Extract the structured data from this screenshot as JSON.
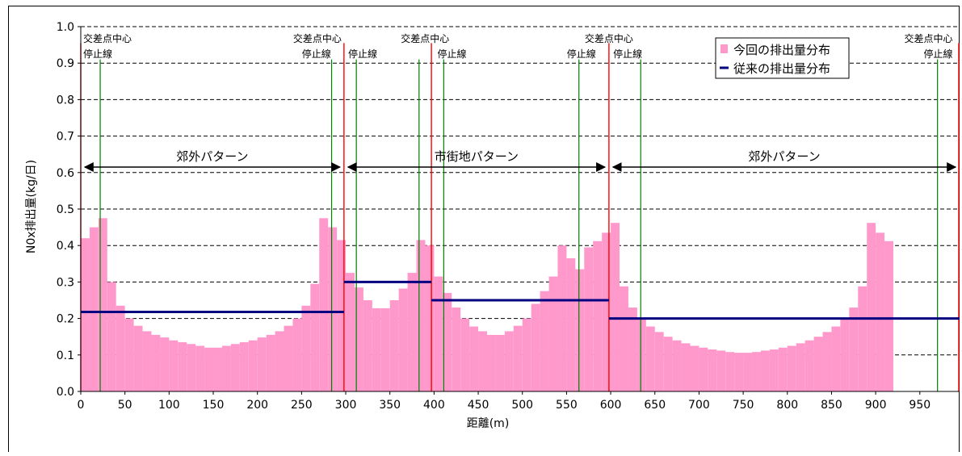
{
  "chart_data": {
    "type": "bar",
    "ylabel": "N0x排出量(kg/日)",
    "xlabel": "距離(m)",
    "ylim": [
      0,
      1.0
    ],
    "xlim": [
      0,
      995
    ],
    "yticks": [
      "0.0",
      "0.1",
      "0.2",
      "0.3",
      "0.4",
      "0.5",
      "0.6",
      "0.7",
      "0.8",
      "0.9",
      "1.0"
    ],
    "xticks": [
      "0",
      "50",
      "100",
      "150",
      "200",
      "250",
      "300",
      "350",
      "400",
      "450",
      "500",
      "550",
      "600",
      "650",
      "700",
      "750",
      "800",
      "850",
      "900",
      "950"
    ],
    "grid": "horizontal dashed",
    "legend": {
      "placement": "top-right",
      "entries": [
        {
          "label": "今回の排出量分布",
          "color": "#ff99cc",
          "kind": "bar"
        },
        {
          "label": "従来の排出量分布",
          "color": "#000080",
          "kind": "line"
        }
      ]
    },
    "bin_width": 10,
    "x_start": 0,
    "series": [
      {
        "name": "今回の排出量分布",
        "color": "#ff99cc",
        "values": [
          0.42,
          0.45,
          0.475,
          0.3,
          0.235,
          0.2,
          0.18,
          0.165,
          0.155,
          0.148,
          0.14,
          0.135,
          0.13,
          0.125,
          0.12,
          0.12,
          0.125,
          0.13,
          0.135,
          0.14,
          0.148,
          0.155,
          0.165,
          0.18,
          0.2,
          0.235,
          0.295,
          0.475,
          0.45,
          0.415,
          0.325,
          0.285,
          0.25,
          0.228,
          0.228,
          0.25,
          0.282,
          0.325,
          0.415,
          0.4,
          0.315,
          0.27,
          0.23,
          0.2,
          0.178,
          0.165,
          0.155,
          0.155,
          0.165,
          0.18,
          0.2,
          0.24,
          0.275,
          0.315,
          0.4,
          0.365,
          0.335,
          0.395,
          0.412,
          0.435,
          0.462,
          0.288,
          0.23,
          0.198,
          0.178,
          0.163,
          0.15,
          0.14,
          0.132,
          0.125,
          0.12,
          0.115,
          0.112,
          0.108,
          0.106,
          0.106,
          0.108,
          0.112,
          0.115,
          0.12,
          0.125,
          0.132,
          0.14,
          0.15,
          0.163,
          0.178,
          0.198,
          0.23,
          0.288,
          0.462,
          0.435,
          0.412
        ]
      },
      {
        "name": "従来の排出量分布",
        "color": "#000080",
        "segments": [
          {
            "x_from": 0,
            "x_to": 298,
            "y": 0.218
          },
          {
            "x_from": 298,
            "x_to": 397,
            "y": 0.3
          },
          {
            "x_from": 397,
            "x_to": 598,
            "y": 0.25
          },
          {
            "x_from": 598,
            "x_to": 995,
            "y": 0.2
          }
        ]
      }
    ],
    "intersection_centers": [
      0,
      298,
      397,
      598,
      995
    ],
    "stop_lines": [
      22,
      284,
      312,
      383,
      411,
      564,
      634,
      970
    ],
    "annotations": [
      {
        "text": "交差点中心",
        "x": 0,
        "row": 1,
        "align": "start"
      },
      {
        "text": "停止線",
        "x": 0,
        "row": 2,
        "align": "start"
      },
      {
        "text": "交差点中心",
        "x": 298,
        "row": 1,
        "align": "end"
      },
      {
        "text": "停止線",
        "x": 286,
        "row": 2,
        "align": "end"
      },
      {
        "text": "停止線",
        "x": 300,
        "row": 2,
        "align": "start"
      },
      {
        "text": "交差点中心",
        "x": 420,
        "row": 1,
        "align": "end"
      },
      {
        "text": "停止線",
        "x": 401,
        "row": 2,
        "align": "start"
      },
      {
        "text": "交差点中心",
        "x": 598,
        "row": 1,
        "align": "middle"
      },
      {
        "text": "停止線",
        "x": 586,
        "row": 2,
        "align": "end"
      },
      {
        "text": "停止線",
        "x": 600,
        "row": 2,
        "align": "start"
      },
      {
        "text": "交差点中心",
        "x": 990,
        "row": 1,
        "align": "end"
      },
      {
        "text": "停止線",
        "x": 990,
        "row": 2,
        "align": "end"
      }
    ],
    "patterns": [
      {
        "label": "郊外パターン",
        "x_from": 0,
        "x_to": 298,
        "y": 0.615
      },
      {
        "label": "市街地パターン",
        "x_from": 298,
        "x_to": 598,
        "y": 0.615
      },
      {
        "label": "郊外パターン",
        "x_from": 598,
        "x_to": 995,
        "y": 0.615
      }
    ]
  }
}
